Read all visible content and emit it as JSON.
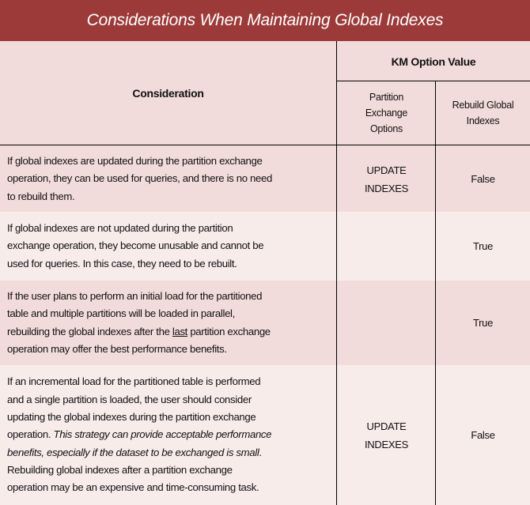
{
  "title": "Considerations When Maintaining Global Indexes",
  "header": {
    "consideration": "Consideration",
    "km_option_value": "KM Option Value",
    "partition_exchange_options": [
      "Partition",
      "Exchange",
      "Options"
    ],
    "rebuild_global_indexes": [
      "Rebuild Global",
      "Indexes"
    ]
  },
  "colors": {
    "title_bg": "#9c3a39",
    "row_dark": "#f2dcdb",
    "row_light": "#f8eceb"
  },
  "rows": [
    {
      "lines": [
        [
          {
            "t": "If global indexes are updated during the partition exchange"
          }
        ],
        [
          {
            "t": "operation, they can be used for queries, and there is no need"
          }
        ],
        [
          {
            "t": "to rebuild them."
          }
        ]
      ],
      "option": [
        "UPDATE",
        "INDEXES"
      ],
      "rebuild": "False"
    },
    {
      "lines": [
        [
          {
            "t": "If global indexes are not updated during the partition"
          }
        ],
        [
          {
            "t": "exchange operation, they become unusable and cannot be"
          }
        ],
        [
          {
            "t": "used for queries.  In this case, they need to be rebuilt."
          }
        ]
      ],
      "option": [],
      "rebuild": "True"
    },
    {
      "lines": [
        [
          {
            "t": "If the user plans to perform an initial load for the partitioned"
          }
        ],
        [
          {
            "t": "table and multiple partitions will be loaded in parallel,"
          }
        ],
        [
          {
            "t": "rebuilding the global indexes after the "
          },
          {
            "t": "last",
            "s": "u"
          },
          {
            "t": " partition exchange"
          }
        ],
        [
          {
            "t": "operation may offer the best performance benefits."
          }
        ]
      ],
      "option": [],
      "rebuild": "True"
    },
    {
      "lines": [
        [
          {
            "t": "If an incremental load for the partitioned table is performed"
          }
        ],
        [
          {
            "t": "and a single partition is loaded, the user should consider"
          }
        ],
        [
          {
            "t": "updating the global indexes during the partition exchange"
          }
        ],
        [
          {
            "t": "operation.  "
          },
          {
            "t": "This strategy can provide acceptable performance",
            "s": "i"
          }
        ],
        [
          {
            "t": "benefits, especially if the dataset to be exchanged is small",
            "s": "i"
          },
          {
            "t": "."
          }
        ],
        [
          {
            "t": "Rebuilding global indexes after a partition exchange"
          }
        ],
        [
          {
            "t": "operation may be an expensive and time-consuming task."
          }
        ]
      ],
      "option": [
        "UPDATE",
        "INDEXES"
      ],
      "rebuild": "False"
    }
  ]
}
